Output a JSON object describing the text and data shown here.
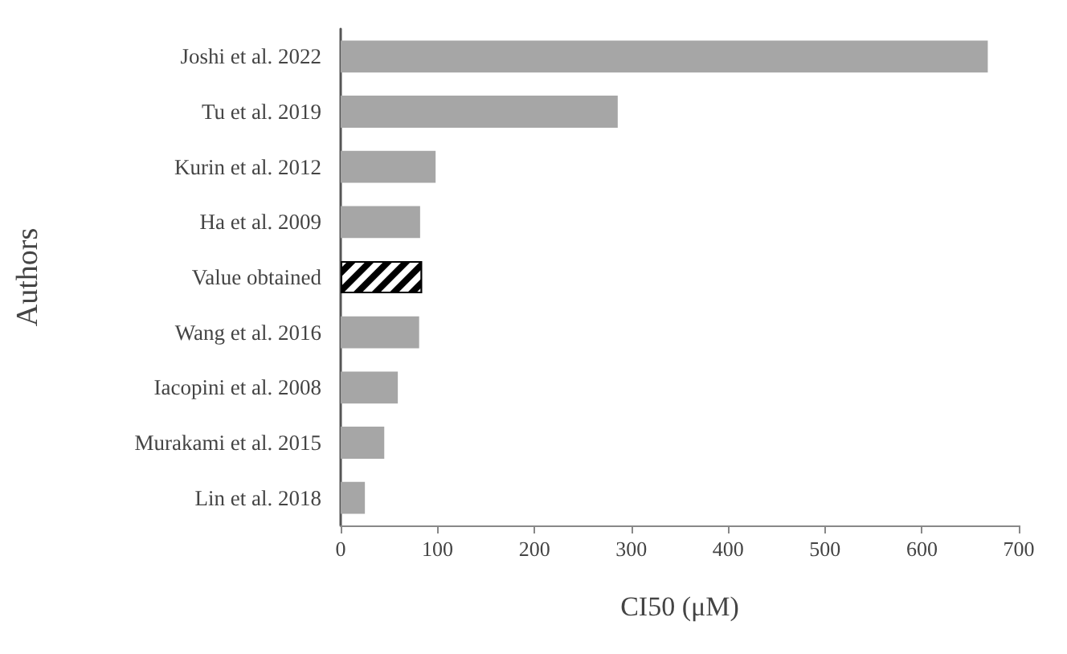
{
  "chart_data": {
    "type": "bar",
    "orientation": "horizontal",
    "xlabel": "CI50 (μM)",
    "ylabel": "Authors",
    "categories": [
      "Joshi et al. 2022",
      "Tu et al. 2019",
      "Kurin et al. 2012",
      "Ha et al. 2009",
      "Value obtained",
      "Wang et al. 2016",
      "Iacopini et al. 2008",
      "Murakami et al. 2015",
      "Lin et al. 2018"
    ],
    "values": [
      668,
      286,
      98,
      82,
      84,
      81,
      59,
      45,
      25
    ],
    "colors": [
      "#a6a6a6",
      "#a6a6a6",
      "#a6a6a6",
      "#a6a6a6",
      "#000000",
      "#a6a6a6",
      "#a6a6a6",
      "#a6a6a6",
      "#a6a6a6"
    ],
    "xlim": [
      0,
      700
    ],
    "xticks": [
      0,
      100,
      200,
      300,
      400,
      500,
      600,
      700
    ],
    "grid": false
  }
}
